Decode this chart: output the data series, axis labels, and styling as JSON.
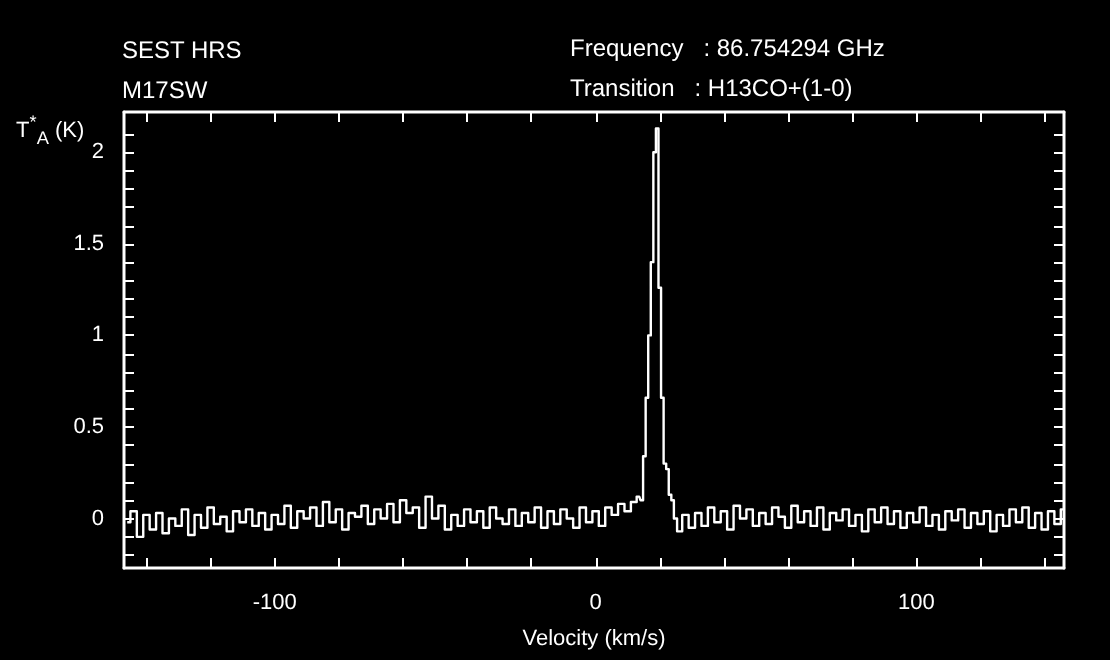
{
  "chart_data": {
    "type": "step",
    "title": "SEST HRS",
    "subtitle": "M17SW",
    "annotations": [
      "Frequency   : 86.754294 GHz",
      "Transition   : H13CO+(1-0)"
    ],
    "xlabel": "Velocity (km/s)",
    "ylabel": "T$^{*}$$_{A}$ (K)",
    "x": [
      -146,
      -144,
      -142,
      -140,
      -138,
      -136,
      -134,
      -132,
      -130,
      -128,
      -126,
      -124,
      -122,
      -120,
      -118,
      -116,
      -114,
      -112,
      -110,
      -108,
      -106,
      -104,
      -102,
      -100,
      -98,
      -96,
      -94,
      -92,
      -90,
      -88,
      -86,
      -84,
      -82,
      -80,
      -78,
      -76,
      -74,
      -72,
      -70,
      -68,
      -66,
      -64,
      -62,
      -60,
      -58,
      -56,
      -54,
      -52,
      -50,
      -48,
      -46,
      -44,
      -42,
      -40,
      -38,
      -36,
      -34,
      -32,
      -30,
      -28,
      -26,
      -24,
      -22,
      -20,
      -18,
      -16,
      -14,
      -12,
      -10,
      -8,
      -6,
      -4,
      -2,
      0,
      2,
      4,
      6,
      8,
      10,
      12,
      13.6,
      14.4,
      15.2,
      16,
      16.8,
      17.6,
      18.4,
      19.2,
      20,
      20.8,
      21.6,
      22.4,
      23.2,
      24,
      24.8,
      26,
      28,
      30,
      32,
      34,
      36,
      38,
      40,
      42,
      44,
      46,
      48,
      50,
      52,
      54,
      56,
      58,
      60,
      62,
      64,
      66,
      68,
      70,
      72,
      74,
      76,
      78,
      80,
      82,
      84,
      86,
      88,
      90,
      92,
      94,
      96,
      98,
      100,
      102,
      104,
      106,
      108,
      110,
      112,
      114,
      116,
      118,
      120,
      122,
      124,
      126,
      128,
      130,
      132,
      134,
      136,
      138,
      140,
      142,
      144,
      146
    ],
    "series": [
      {
        "color": "#ffffff",
        "values": [
          -0.02,
          0.04,
          -0.1,
          0.02,
          -0.06,
          0.03,
          -0.08,
          0.0,
          -0.04,
          0.05,
          -0.09,
          0.02,
          -0.05,
          0.06,
          -0.03,
          0.01,
          -0.07,
          0.04,
          -0.02,
          0.05,
          -0.04,
          0.03,
          -0.06,
          0.02,
          -0.03,
          0.07,
          -0.05,
          0.04,
          0.0,
          0.06,
          -0.04,
          0.09,
          -0.02,
          0.05,
          -0.06,
          0.03,
          0.01,
          0.07,
          -0.03,
          0.05,
          0.0,
          0.08,
          -0.02,
          0.1,
          0.03,
          0.06,
          -0.05,
          0.12,
          0.0,
          0.07,
          -0.06,
          0.02,
          -0.04,
          0.05,
          -0.02,
          0.04,
          -0.05,
          0.06,
          0.0,
          -0.03,
          0.05,
          -0.04,
          0.03,
          -0.02,
          0.06,
          -0.05,
          0.04,
          -0.03,
          0.05,
          0.0,
          -0.05,
          0.06,
          -0.02,
          0.04,
          -0.04,
          0.06,
          0.02,
          0.08,
          0.04,
          0.09,
          0.12,
          0.1,
          0.34,
          0.66,
          1.0,
          1.4,
          2.0,
          2.13,
          1.26,
          0.66,
          0.3,
          0.27,
          0.13,
          0.1,
          0.0,
          -0.07,
          0.02,
          -0.05,
          0.03,
          -0.04,
          0.06,
          -0.02,
          0.04,
          -0.06,
          0.07,
          0.0,
          0.05,
          -0.04,
          0.03,
          -0.03,
          0.06,
          0.01,
          -0.05,
          0.07,
          -0.02,
          0.04,
          -0.04,
          0.06,
          -0.06,
          0.03,
          -0.01,
          0.05,
          -0.04,
          0.02,
          -0.07,
          0.05,
          -0.02,
          0.06,
          -0.03,
          0.04,
          -0.05,
          0.03,
          -0.02,
          0.06,
          -0.04,
          0.02,
          -0.06,
          0.04,
          -0.01,
          0.05,
          -0.05,
          0.03,
          -0.03,
          0.04,
          -0.07,
          0.02,
          -0.04,
          0.05,
          -0.02,
          0.06,
          -0.05,
          0.03,
          -0.06,
          0.04,
          -0.03,
          0.05
        ]
      }
    ],
    "xlim": [
      -147,
      146
    ],
    "xticks": [
      {
        "value": -140,
        "label": null
      },
      {
        "value": -120,
        "label": null
      },
      -100,
      {
        "value": -80,
        "label": null
      },
      {
        "value": -60,
        "label": null
      },
      {
        "value": -40,
        "label": null
      },
      {
        "value": -20,
        "label": null
      },
      0,
      {
        "value": 20,
        "label": null
      },
      {
        "value": 40,
        "label": null
      },
      {
        "value": 60,
        "label": null
      },
      {
        "value": 80,
        "label": null
      },
      100,
      {
        "value": 120,
        "label": null
      },
      {
        "value": 140,
        "label": null
      }
    ],
    "ylim": [
      -0.27,
      2.22
    ],
    "yticks": [
      {
        "value": -0.2,
        "label": null
      },
      {
        "value": -0.1,
        "label": null
      },
      0,
      {
        "value": 0.1,
        "label": null
      },
      {
        "value": 0.2,
        "label": null
      },
      {
        "value": 0.3,
        "label": null
      },
      {
        "value": 0.4,
        "label": null
      },
      0.5,
      {
        "value": 0.6,
        "label": null
      },
      {
        "value": 0.7,
        "label": null
      },
      {
        "value": 0.8,
        "label": null
      },
      {
        "value": 0.9,
        "label": null
      },
      1,
      {
        "value": 1.1,
        "label": null
      },
      {
        "value": 1.2,
        "label": null
      },
      {
        "value": 1.3,
        "label": null
      },
      {
        "value": 1.4,
        "label": null
      },
      1.5,
      {
        "value": 1.6,
        "label": null
      },
      {
        "value": 1.7,
        "label": null
      },
      {
        "value": 1.8,
        "label": null
      },
      {
        "value": 1.9,
        "label": null
      },
      2,
      {
        "value": 2.1,
        "label": null
      }
    ],
    "marker": "none",
    "line_style": "solid",
    "grid": false
  }
}
